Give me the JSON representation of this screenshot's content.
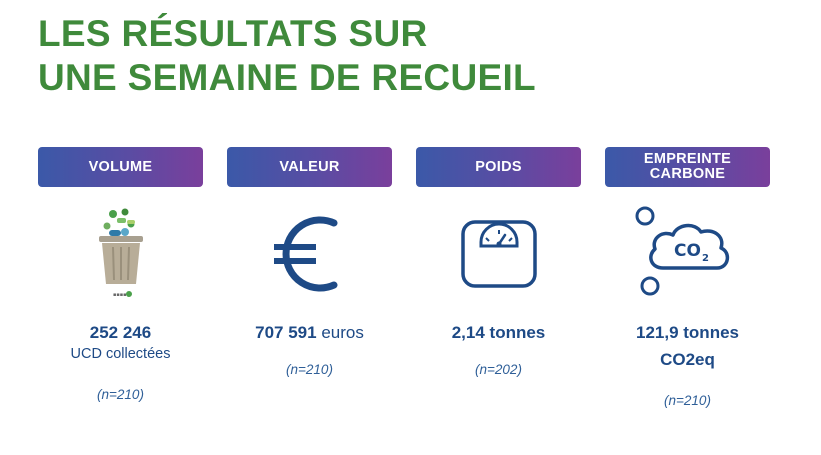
{
  "title": {
    "line1": "LES RÉSULTATS SUR",
    "line2": "UNE SEMAINE DE RECUEIL"
  },
  "colors": {
    "title": "#3f8a3b",
    "badge_start": "#3b59a8",
    "badge_end": "#7a3f9c",
    "text": "#1e4a86"
  },
  "cards": [
    {
      "badge": "VOLUME",
      "icon": "trash-bin-icon",
      "value_bold": "252 246",
      "value_rest": "",
      "sub": "UCD collectées",
      "n": "(n=210)"
    },
    {
      "badge": "VALEUR",
      "icon": "euro-icon",
      "value_bold": "707 591",
      "value_rest": " euros",
      "sub": "",
      "n": "(n=210)"
    },
    {
      "badge": "POIDS",
      "icon": "scale-icon",
      "value_bold": "2,14 tonnes",
      "value_rest": "",
      "sub": "",
      "n": "(n=202)"
    },
    {
      "badge": "EMPREINTE\nCARBONE",
      "icon": "co2-cloud-icon",
      "value_bold": "121,9 tonnes",
      "value_rest": "",
      "sub": "CO2eq",
      "n": "(n=210)"
    }
  ]
}
